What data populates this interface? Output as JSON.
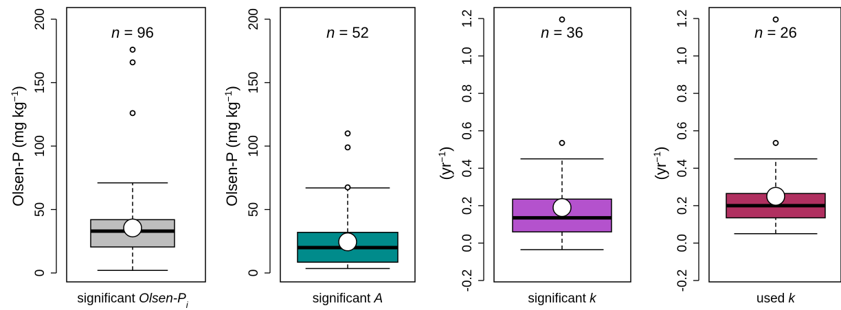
{
  "chart_data": [
    {
      "type": "box",
      "ylim": [
        -2,
        200
      ],
      "yticks": [
        0,
        50,
        100,
        150,
        200
      ],
      "ytick_labels": [
        "0",
        "50",
        "100",
        "150",
        "200"
      ],
      "ylabel": {
        "main": "Olsen-P (mg kg",
        "sup": "−1",
        "close": ")"
      },
      "n_label": {
        "italic": "n",
        "rest": " = 96"
      },
      "category_label": {
        "text": "significant ",
        "italic": "Olsen-P",
        "sub": "i"
      },
      "fill": "#bebebe",
      "box": {
        "whisker_low": 2,
        "q1": 20.5,
        "median": 33,
        "q3": 42,
        "whisker_high": 71,
        "mean": 35.5,
        "outliers": [
          126,
          166,
          176
        ]
      }
    },
    {
      "type": "box",
      "ylim": [
        -2,
        200
      ],
      "yticks": [
        0,
        50,
        100,
        150,
        200
      ],
      "ytick_labels": [
        "0",
        "50",
        "100",
        "150",
        "200"
      ],
      "ylabel": {
        "main": "Olsen-P (mg kg",
        "sup": "−1",
        "close": ")"
      },
      "n_label": {
        "italic": "n",
        "rest": " = 52"
      },
      "category_label": {
        "text": "significant ",
        "italic": "A",
        "sub": ""
      },
      "fill": "#008b8b",
      "box": {
        "whisker_low": 3.5,
        "q1": 8.5,
        "median": 20,
        "q3": 32,
        "whisker_high": 67,
        "mean": 24.5,
        "outliers": [
          67.5,
          99,
          110
        ]
      }
    },
    {
      "type": "box",
      "ylim": [
        -0.2,
        1.25
      ],
      "yticks": [
        -0.2,
        0.0,
        0.2,
        0.4,
        0.6,
        0.8,
        1.0,
        1.2
      ],
      "ytick_labels": [
        "-0.2",
        "0.0",
        "0.2",
        "0.4",
        "0.6",
        "0.8",
        "1.0",
        "1.2"
      ],
      "ylabel": {
        "main": "(yr",
        "sup": "−1",
        "close": ")"
      },
      "n_label": {
        "italic": "n",
        "rest": " = 36"
      },
      "category_label": {
        "text": "significant ",
        "italic": "k",
        "sub": ""
      },
      "fill": "#b452cd",
      "box": {
        "whisker_low": -0.035,
        "q1": 0.06,
        "median": 0.135,
        "q3": 0.235,
        "whisker_high": 0.45,
        "mean": 0.19,
        "outliers": [
          0.535,
          1.195
        ]
      }
    },
    {
      "type": "box",
      "ylim": [
        -0.2,
        1.25
      ],
      "yticks": [
        -0.2,
        0.0,
        0.2,
        0.4,
        0.6,
        0.8,
        1.0,
        1.2
      ],
      "ytick_labels": [
        "-0.2",
        "0.0",
        "0.2",
        "0.4",
        "0.6",
        "0.8",
        "1.0",
        "1.2"
      ],
      "ylabel": {
        "main": "(yr",
        "sup": "−1",
        "close": ")"
      },
      "n_label": {
        "italic": "n",
        "rest": " = 26"
      },
      "category_label": {
        "text": "used ",
        "italic": "k",
        "sub": ""
      },
      "fill": "#b03060",
      "box": {
        "whisker_low": 0.05,
        "q1": 0.135,
        "median": 0.2,
        "q3": 0.265,
        "whisker_high": 0.45,
        "mean": 0.25,
        "outliers": [
          0.535,
          1.195
        ]
      }
    }
  ]
}
